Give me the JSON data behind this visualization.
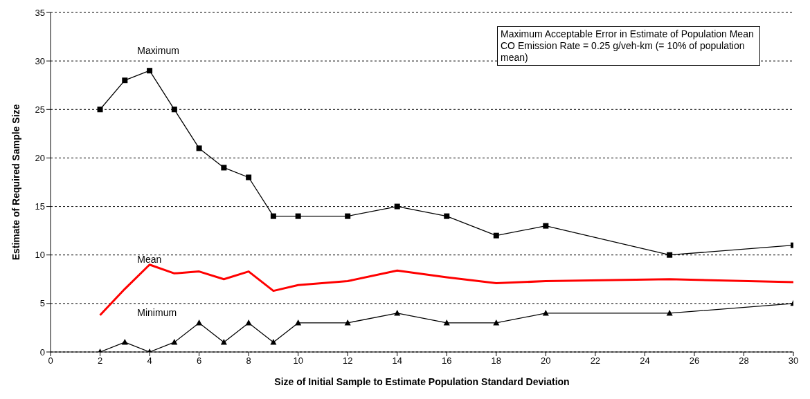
{
  "chart_data": {
    "type": "line",
    "xlabel": "Size of Initial Sample to Estimate Population Standard Deviation",
    "ylabel": "Estimate of Required Sample Size",
    "x": [
      2,
      3,
      4,
      5,
      6,
      7,
      8,
      9,
      10,
      12,
      14,
      16,
      18,
      20,
      25,
      30
    ],
    "series": [
      {
        "name": "Maximum",
        "color": "#000000",
        "marker": "square",
        "values": [
          25,
          28,
          29,
          25,
          21,
          19,
          18,
          14,
          14,
          14,
          15,
          14,
          12,
          13,
          10,
          11
        ]
      },
      {
        "name": "Mean",
        "color": "#ff0000",
        "marker": "none",
        "values": [
          3.8,
          6.5,
          9.0,
          8.1,
          8.3,
          7.5,
          8.3,
          6.3,
          6.9,
          7.3,
          8.4,
          7.7,
          7.1,
          7.3,
          7.5,
          7.2
        ]
      },
      {
        "name": "Minimum",
        "color": "#000000",
        "marker": "triangle",
        "values": [
          0,
          1,
          0,
          1,
          3,
          1,
          3,
          1,
          3,
          3,
          4,
          3,
          3,
          4,
          4,
          5
        ]
      }
    ],
    "xlim": [
      0,
      30
    ],
    "xticks": [
      0,
      2,
      4,
      6,
      8,
      10,
      12,
      14,
      16,
      18,
      20,
      22,
      24,
      26,
      28,
      30
    ],
    "ylim": [
      0,
      35
    ],
    "yticks": [
      0,
      5,
      10,
      15,
      20,
      25,
      30,
      35
    ],
    "grid": "y",
    "legend": false,
    "annotations": [
      "Maximum Acceptable Error in Estimate of Population Mean CO Emission Rate = 0.25 g/veh-km (= 10% of population mean)"
    ]
  }
}
